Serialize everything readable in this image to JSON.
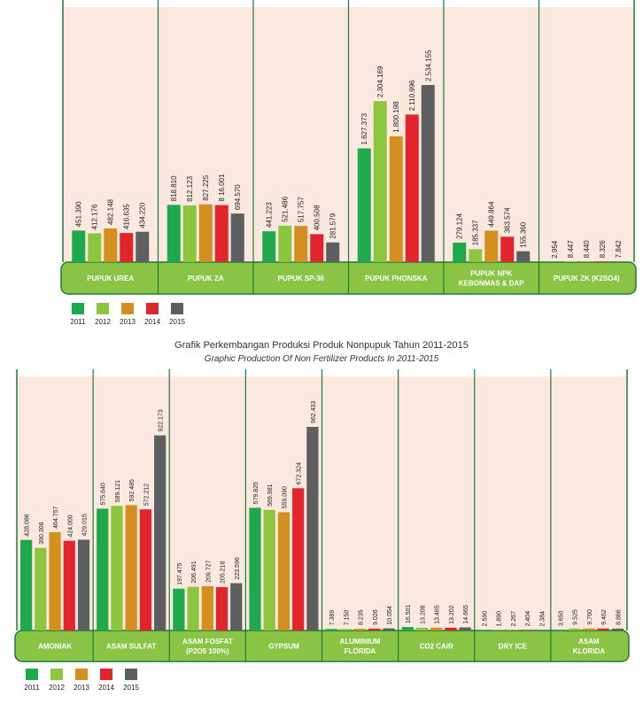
{
  "colors": {
    "2011": "#1eaa4c",
    "2012": "#8cc63e",
    "2013": "#d4901f",
    "2014": "#e2242c",
    "2015": "#5d5e60",
    "panel_bg": "#fbe8df",
    "band": "#8ac445",
    "line": "#1f7a3b"
  },
  "years": [
    "2011",
    "2012",
    "2013",
    "2014",
    "2015"
  ],
  "title_between": {
    "main": "Grafik Perkembangan Produksi Produk Nonpupuk Tahun 2011-2015",
    "sub": "Graphic Production Of Non Fertilizer Products In 2011-2015"
  },
  "chart_data": [
    {
      "type": "bar",
      "title": "",
      "xlabel": "",
      "ylabel": "",
      "years": [
        "2011",
        "2012",
        "2013",
        "2014",
        "2015"
      ],
      "categories": [
        {
          "label": [
            "PUPUK UREA"
          ],
          "values": [
            "451.390",
            "412.176",
            "482.148",
            "416.635",
            "434.220"
          ]
        },
        {
          "label": [
            "PUPUK ZA"
          ],
          "values": [
            "818.810",
            "812.123",
            "827.225",
            "8 16.001",
            "694.570"
          ]
        },
        {
          "label": [
            "PUPUK SP-36"
          ],
          "values": [
            "441.223",
            "521.486",
            "517.757",
            "400.508",
            "281.579"
          ]
        },
        {
          "label": [
            "PUPUK PHONSKA"
          ],
          "values": [
            "1.627.373",
            "2.304.169",
            "1.800.198",
            "2.110.996",
            "2.534.155"
          ]
        },
        {
          "label": [
            "PUPUK NPK",
            "KEBONMAS & DAP"
          ],
          "values": [
            "279.124",
            "185.337",
            "449.864",
            "363.574",
            "155.360"
          ]
        },
        {
          "label": [
            "PUPUK ZK (K2SO4)"
          ],
          "values": [
            "2.954",
            "8.447",
            "8.440",
            "8.326",
            "7.842"
          ]
        }
      ]
    },
    {
      "type": "bar",
      "title": "Grafik Perkembangan Produksi Produk Nonpupuk Tahun 2011-2015",
      "subtitle": "Graphic Production Of Non Fertilizer Products In 2011-2015",
      "xlabel": "",
      "ylabel": "",
      "years": [
        "2011",
        "2012",
        "2013",
        "2014",
        "2015"
      ],
      "categories": [
        {
          "label": [
            "AMONIAK"
          ],
          "values": [
            "428.086",
            "390.308",
            "464.757",
            "424.000",
            "429.015"
          ]
        },
        {
          "label": [
            "ASAM SULFAT"
          ],
          "values": [
            "575.640",
            "589.121",
            "592.485",
            "572.212",
            "922.173"
          ]
        },
        {
          "label": [
            "ASAM FOSFAT",
            "(P2O5 100%)"
          ],
          "values": [
            "197.475",
            "206.491",
            "209.727",
            "205.218",
            "223.596"
          ]
        },
        {
          "label": [
            "GYPSUM"
          ],
          "values": [
            "579.825",
            "569.981",
            "559.090",
            "672.324",
            "962.433"
          ]
        },
        {
          "label": [
            "ALUMINIUM",
            "FLORIDA"
          ],
          "values": [
            "7.389",
            "7.150",
            "8.235",
            "9.026",
            "10.054"
          ]
        },
        {
          "label": [
            "CO2 CAIR"
          ],
          "values": [
            "16.501",
            "13.208",
            "13.465",
            "13.202",
            "14.665"
          ]
        },
        {
          "label": [
            "DRY ICE"
          ],
          "values": [
            "2.590",
            "1.890",
            "2.267",
            "2.404",
            "2.384"
          ]
        },
        {
          "label": [
            "ASAM",
            "KLORIDA"
          ],
          "values": [
            "3.650",
            "9.525",
            "9.760",
            "9.462",
            "8.866"
          ]
        }
      ]
    }
  ]
}
